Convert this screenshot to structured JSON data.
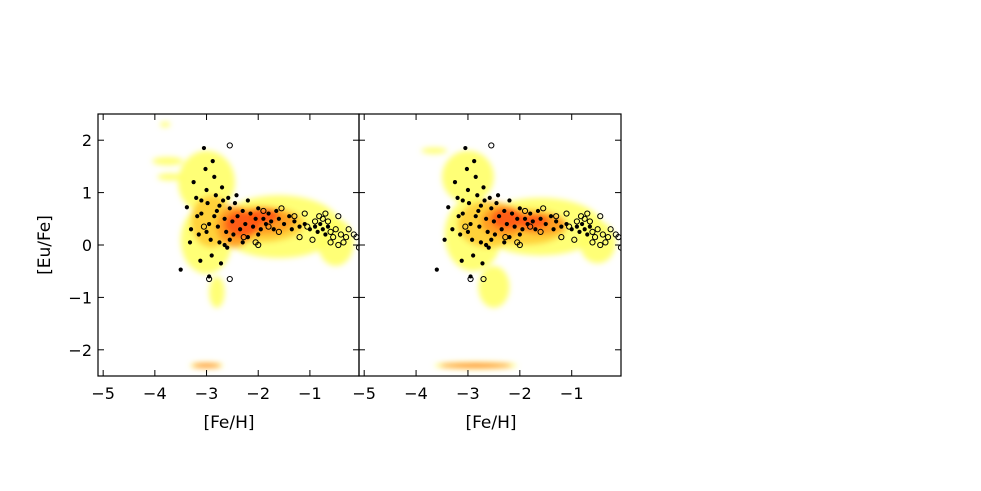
{
  "chart_data": [
    {
      "type": "scatter",
      "panel": "left",
      "xlabel": "[Fe/H]",
      "ylabel": "[Eu/Fe]",
      "xlim": [
        -5.1,
        -0.05
      ],
      "ylim": [
        -2.5,
        2.5
      ],
      "xticks": [
        -5,
        -4,
        -3,
        -2,
        -1
      ],
      "yticks": [
        -2,
        -1,
        0,
        1,
        2
      ],
      "xtick_labels": [
        "−5",
        "−4",
        "−3",
        "−2",
        "−1"
      ],
      "ytick_labels": [
        "−2",
        "−1",
        "0",
        "1",
        "2"
      ],
      "grid": false,
      "legend": "none",
      "density_colors": [
        "#ffff66",
        "#ffcc33",
        "#ff9922",
        "#ff5511",
        "#ee1100"
      ],
      "density_blobs": [
        {
          "x": -3.8,
          "y": 2.3,
          "rx": 0.1,
          "ry": 0.05,
          "level": 0
        },
        {
          "x": -3.75,
          "y": 1.6,
          "rx": 0.3,
          "ry": 0.08,
          "level": 0
        },
        {
          "x": -3.7,
          "y": 1.3,
          "rx": 0.25,
          "ry": 0.07,
          "level": 0
        },
        {
          "x": -3.0,
          "y": 1.2,
          "rx": 0.55,
          "ry": 0.6,
          "level": 0
        },
        {
          "x": -3.0,
          "y": 0.1,
          "rx": 0.5,
          "ry": 0.65,
          "level": 0
        },
        {
          "x": -2.8,
          "y": -0.9,
          "rx": 0.15,
          "ry": 0.3,
          "level": 0
        },
        {
          "x": -1.6,
          "y": 0.35,
          "rx": 1.2,
          "ry": 0.6,
          "level": 0
        },
        {
          "x": -0.5,
          "y": 0.05,
          "rx": 0.35,
          "ry": 0.45,
          "level": 0
        },
        {
          "x": -2.9,
          "y": 0.45,
          "rx": 0.4,
          "ry": 0.5,
          "level": 1
        },
        {
          "x": -2.0,
          "y": 0.4,
          "rx": 0.9,
          "ry": 0.35,
          "level": 1
        },
        {
          "x": -2.45,
          "y": 0.35,
          "rx": 0.35,
          "ry": 0.4,
          "level": 2
        },
        {
          "x": -1.9,
          "y": 0.45,
          "rx": 0.6,
          "ry": 0.25,
          "level": 2
        },
        {
          "x": -2.3,
          "y": 0.4,
          "rx": 0.35,
          "ry": 0.25,
          "level": 3
        },
        {
          "x": -1.9,
          "y": 0.55,
          "rx": 0.3,
          "ry": 0.15,
          "level": 3
        },
        {
          "x": -3.0,
          "y": -2.3,
          "rx": 0.32,
          "ry": 0.06,
          "level": 0
        },
        {
          "x": -3.0,
          "y": -2.3,
          "rx": 0.28,
          "ry": 0.035,
          "level": 3
        }
      ],
      "filled_points": [
        [
          -3.5,
          -0.47
        ],
        [
          -3.38,
          0.72
        ],
        [
          -3.32,
          0.05
        ],
        [
          -3.3,
          0.3
        ],
        [
          -3.25,
          1.2
        ],
        [
          -3.2,
          0.9
        ],
        [
          -3.18,
          0.55
        ],
        [
          -3.15,
          0.2
        ],
        [
          -3.12,
          -0.3
        ],
        [
          -3.1,
          0.6
        ],
        [
          -3.05,
          1.85
        ],
        [
          -3.02,
          1.45
        ],
        [
          -3.0,
          1.05
        ],
        [
          -2.98,
          0.8
        ],
        [
          -2.95,
          0.4
        ],
        [
          -2.92,
          0.1
        ],
        [
          -2.9,
          -0.2
        ],
        [
          -2.88,
          1.6
        ],
        [
          -2.85,
          1.3
        ],
        [
          -2.82,
          0.95
        ],
        [
          -2.8,
          0.65
        ],
        [
          -2.78,
          0.35
        ],
        [
          -2.75,
          0.05
        ],
        [
          -2.72,
          -0.35
        ],
        [
          -2.7,
          1.1
        ],
        [
          -2.68,
          0.85
        ],
        [
          -2.65,
          0.5
        ],
        [
          -2.62,
          0.25
        ],
        [
          -2.6,
          -0.05
        ],
        [
          -2.58,
          0.9
        ],
        [
          -2.55,
          0.7
        ],
        [
          -2.5,
          0.45
        ],
        [
          -2.48,
          0.2
        ],
        [
          -2.45,
          0.8
        ],
        [
          -2.4,
          0.55
        ],
        [
          -2.35,
          0.3
        ],
        [
          -2.3,
          0.65
        ],
        [
          -2.25,
          0.4
        ],
        [
          -2.2,
          0.15
        ],
        [
          -2.15,
          0.6
        ],
        [
          -2.1,
          0.35
        ],
        [
          -2.05,
          0.5
        ],
        [
          -2.0,
          0.7
        ],
        [
          -1.95,
          0.3
        ],
        [
          -1.9,
          0.5
        ],
        [
          -1.85,
          0.4
        ],
        [
          -1.8,
          0.6
        ],
        [
          -1.75,
          0.45
        ],
        [
          -1.7,
          0.3
        ],
        [
          -1.6,
          0.5
        ],
        [
          -1.5,
          0.4
        ],
        [
          -1.4,
          0.55
        ],
        [
          -1.3,
          0.45
        ],
        [
          -1.2,
          0.35
        ],
        [
          -1.1,
          0.4
        ],
        [
          -1.0,
          0.3
        ],
        [
          -0.9,
          0.35
        ],
        [
          -0.85,
          0.25
        ],
        [
          -0.8,
          0.4
        ],
        [
          -0.75,
          0.3
        ],
        [
          -0.7,
          0.2
        ],
        [
          -0.65,
          0.35
        ],
        [
          -2.95,
          -0.6
        ],
        [
          -2.65,
          0.0
        ],
        [
          -3.1,
          0.85
        ],
        [
          -2.85,
          0.55
        ],
        [
          -2.55,
          0.1
        ],
        [
          -2.3,
          0.05
        ],
        [
          -2.0,
          0.2
        ],
        [
          -1.65,
          0.65
        ],
        [
          -3.0,
          0.25
        ],
        [
          -2.75,
          0.75
        ],
        [
          -2.42,
          0.95
        ],
        [
          -2.2,
          0.85
        ],
        [
          -1.35,
          0.3
        ]
      ],
      "open_points": [
        [
          -2.55,
          1.9
        ],
        [
          -3.05,
          0.35
        ],
        [
          -2.95,
          -0.65
        ],
        [
          -2.55,
          -0.65
        ],
        [
          -2.28,
          0.15
        ],
        [
          -2.0,
          0.0
        ],
        [
          -1.9,
          0.65
        ],
        [
          -1.55,
          0.7
        ],
        [
          -1.3,
          0.55
        ],
        [
          -1.1,
          0.6
        ],
        [
          -1.05,
          0.35
        ],
        [
          -0.95,
          0.1
        ],
        [
          -0.9,
          0.45
        ],
        [
          -0.82,
          0.55
        ],
        [
          -0.75,
          0.5
        ],
        [
          -0.7,
          0.6
        ],
        [
          -0.65,
          0.45
        ],
        [
          -0.6,
          0.25
        ],
        [
          -0.55,
          0.15
        ],
        [
          -0.5,
          0.3
        ],
        [
          -0.45,
          0.55
        ],
        [
          -0.4,
          0.2
        ],
        [
          -0.35,
          0.05
        ],
        [
          -0.3,
          0.15
        ],
        [
          -0.25,
          0.3
        ],
        [
          -0.15,
          0.2
        ],
        [
          -0.1,
          0.15
        ],
        [
          -0.05,
          -0.05
        ],
        [
          -0.45,
          0.0
        ],
        [
          -0.6,
          0.05
        ],
        [
          -1.6,
          0.25
        ],
        [
          -1.8,
          0.35
        ],
        [
          -2.05,
          0.05
        ],
        [
          -1.2,
          0.15
        ]
      ]
    },
    {
      "type": "scatter",
      "panel": "right",
      "xlabel": "[Fe/H]",
      "ylabel": "",
      "xlim": [
        -5.1,
        -0.05
      ],
      "ylim": [
        -2.5,
        2.5
      ],
      "xticks": [
        -5,
        -4,
        -3,
        -2,
        -1
      ],
      "xtick_labels": [
        "−5",
        "−4",
        "−3",
        "−2",
        "−1"
      ],
      "grid": false,
      "legend": "none",
      "density_colors": [
        "#ffff66",
        "#ffcc33",
        "#ff9922",
        "#ff5511",
        "#ee1100"
      ],
      "density_blobs": [
        {
          "x": -3.65,
          "y": 1.8,
          "rx": 0.25,
          "ry": 0.06,
          "level": 0
        },
        {
          "x": -3.0,
          "y": 1.3,
          "rx": 0.5,
          "ry": 0.5,
          "level": 0
        },
        {
          "x": -2.9,
          "y": 0.2,
          "rx": 0.55,
          "ry": 0.7,
          "level": 0
        },
        {
          "x": -2.5,
          "y": -0.8,
          "rx": 0.3,
          "ry": 0.4,
          "level": 0
        },
        {
          "x": -1.6,
          "y": 0.35,
          "rx": 1.2,
          "ry": 0.55,
          "level": 0
        },
        {
          "x": -0.5,
          "y": 0.05,
          "rx": 0.35,
          "ry": 0.4,
          "level": 0
        },
        {
          "x": -2.6,
          "y": 0.4,
          "rx": 0.6,
          "ry": 0.45,
          "level": 1
        },
        {
          "x": -1.9,
          "y": 0.35,
          "rx": 0.8,
          "ry": 0.35,
          "level": 1
        },
        {
          "x": -2.3,
          "y": 0.45,
          "rx": 0.45,
          "ry": 0.3,
          "level": 2
        },
        {
          "x": -1.6,
          "y": 0.4,
          "rx": 0.5,
          "ry": 0.2,
          "level": 2
        },
        {
          "x": -2.25,
          "y": 0.5,
          "rx": 0.3,
          "ry": 0.2,
          "level": 3
        },
        {
          "x": -1.75,
          "y": 0.45,
          "rx": 0.3,
          "ry": 0.15,
          "level": 3
        },
        {
          "x": -2.85,
          "y": -2.3,
          "rx": 0.8,
          "ry": 0.07,
          "level": 0
        },
        {
          "x": -2.85,
          "y": -2.3,
          "rx": 0.7,
          "ry": 0.04,
          "level": 3
        }
      ],
      "filled_points": [
        [
          -3.6,
          -0.47
        ],
        [
          -3.45,
          0.1
        ],
        [
          -3.38,
          0.72
        ],
        [
          -3.3,
          0.3
        ],
        [
          -3.25,
          1.2
        ],
        [
          -3.2,
          0.9
        ],
        [
          -3.18,
          0.55
        ],
        [
          -3.15,
          0.2
        ],
        [
          -3.12,
          -0.3
        ],
        [
          -3.1,
          0.6
        ],
        [
          -3.05,
          1.85
        ],
        [
          -3.02,
          1.45
        ],
        [
          -3.0,
          1.05
        ],
        [
          -2.98,
          0.8
        ],
        [
          -2.95,
          0.4
        ],
        [
          -2.92,
          0.1
        ],
        [
          -2.9,
          -0.2
        ],
        [
          -2.88,
          1.6
        ],
        [
          -2.85,
          1.3
        ],
        [
          -2.82,
          0.95
        ],
        [
          -2.8,
          0.65
        ],
        [
          -2.78,
          0.35
        ],
        [
          -2.75,
          0.05
        ],
        [
          -2.72,
          -0.35
        ],
        [
          -2.7,
          1.1
        ],
        [
          -2.68,
          0.85
        ],
        [
          -2.65,
          0.5
        ],
        [
          -2.62,
          0.25
        ],
        [
          -2.6,
          -0.05
        ],
        [
          -2.58,
          0.9
        ],
        [
          -2.55,
          0.7
        ],
        [
          -2.5,
          0.45
        ],
        [
          -2.48,
          0.2
        ],
        [
          -2.45,
          0.8
        ],
        [
          -2.4,
          0.55
        ],
        [
          -2.35,
          0.3
        ],
        [
          -2.3,
          0.65
        ],
        [
          -2.25,
          0.4
        ],
        [
          -2.2,
          0.15
        ],
        [
          -2.15,
          0.6
        ],
        [
          -2.1,
          0.35
        ],
        [
          -2.05,
          0.5
        ],
        [
          -2.0,
          0.7
        ],
        [
          -1.95,
          0.3
        ],
        [
          -1.9,
          0.5
        ],
        [
          -1.85,
          0.4
        ],
        [
          -1.8,
          0.6
        ],
        [
          -1.75,
          0.45
        ],
        [
          -1.7,
          0.3
        ],
        [
          -1.6,
          0.5
        ],
        [
          -1.5,
          0.4
        ],
        [
          -1.4,
          0.55
        ],
        [
          -1.3,
          0.45
        ],
        [
          -1.2,
          0.35
        ],
        [
          -1.1,
          0.4
        ],
        [
          -1.0,
          0.3
        ],
        [
          -0.9,
          0.35
        ],
        [
          -0.85,
          0.25
        ],
        [
          -0.8,
          0.4
        ],
        [
          -0.75,
          0.3
        ],
        [
          -0.7,
          0.2
        ],
        [
          -0.65,
          0.35
        ],
        [
          -2.95,
          -0.6
        ],
        [
          -2.65,
          0.0
        ],
        [
          -3.1,
          0.85
        ],
        [
          -2.85,
          0.55
        ],
        [
          -2.55,
          0.1
        ],
        [
          -2.3,
          0.05
        ],
        [
          -2.0,
          0.2
        ],
        [
          -1.65,
          0.65
        ],
        [
          -3.0,
          0.25
        ],
        [
          -2.75,
          0.75
        ],
        [
          -2.42,
          0.95
        ],
        [
          -2.2,
          0.85
        ],
        [
          -1.35,
          0.3
        ]
      ],
      "open_points": [
        [
          -2.55,
          1.9
        ],
        [
          -3.05,
          0.35
        ],
        [
          -2.95,
          -0.65
        ],
        [
          -2.7,
          -0.65
        ],
        [
          -2.28,
          0.15
        ],
        [
          -2.0,
          0.0
        ],
        [
          -1.9,
          0.65
        ],
        [
          -1.55,
          0.7
        ],
        [
          -1.3,
          0.55
        ],
        [
          -1.1,
          0.6
        ],
        [
          -1.05,
          0.35
        ],
        [
          -0.95,
          0.1
        ],
        [
          -0.9,
          0.45
        ],
        [
          -0.82,
          0.55
        ],
        [
          -0.75,
          0.5
        ],
        [
          -0.7,
          0.6
        ],
        [
          -0.65,
          0.45
        ],
        [
          -0.6,
          0.25
        ],
        [
          -0.55,
          0.15
        ],
        [
          -0.5,
          0.3
        ],
        [
          -0.45,
          0.55
        ],
        [
          -0.4,
          0.2
        ],
        [
          -0.35,
          0.05
        ],
        [
          -0.3,
          0.15
        ],
        [
          -0.25,
          0.3
        ],
        [
          -0.15,
          0.2
        ],
        [
          -0.1,
          0.15
        ],
        [
          -0.05,
          -0.05
        ],
        [
          -0.45,
          0.0
        ],
        [
          -0.6,
          0.05
        ],
        [
          -1.6,
          0.25
        ],
        [
          -1.8,
          0.35
        ],
        [
          -2.05,
          0.05
        ],
        [
          -1.2,
          0.15
        ]
      ]
    }
  ]
}
